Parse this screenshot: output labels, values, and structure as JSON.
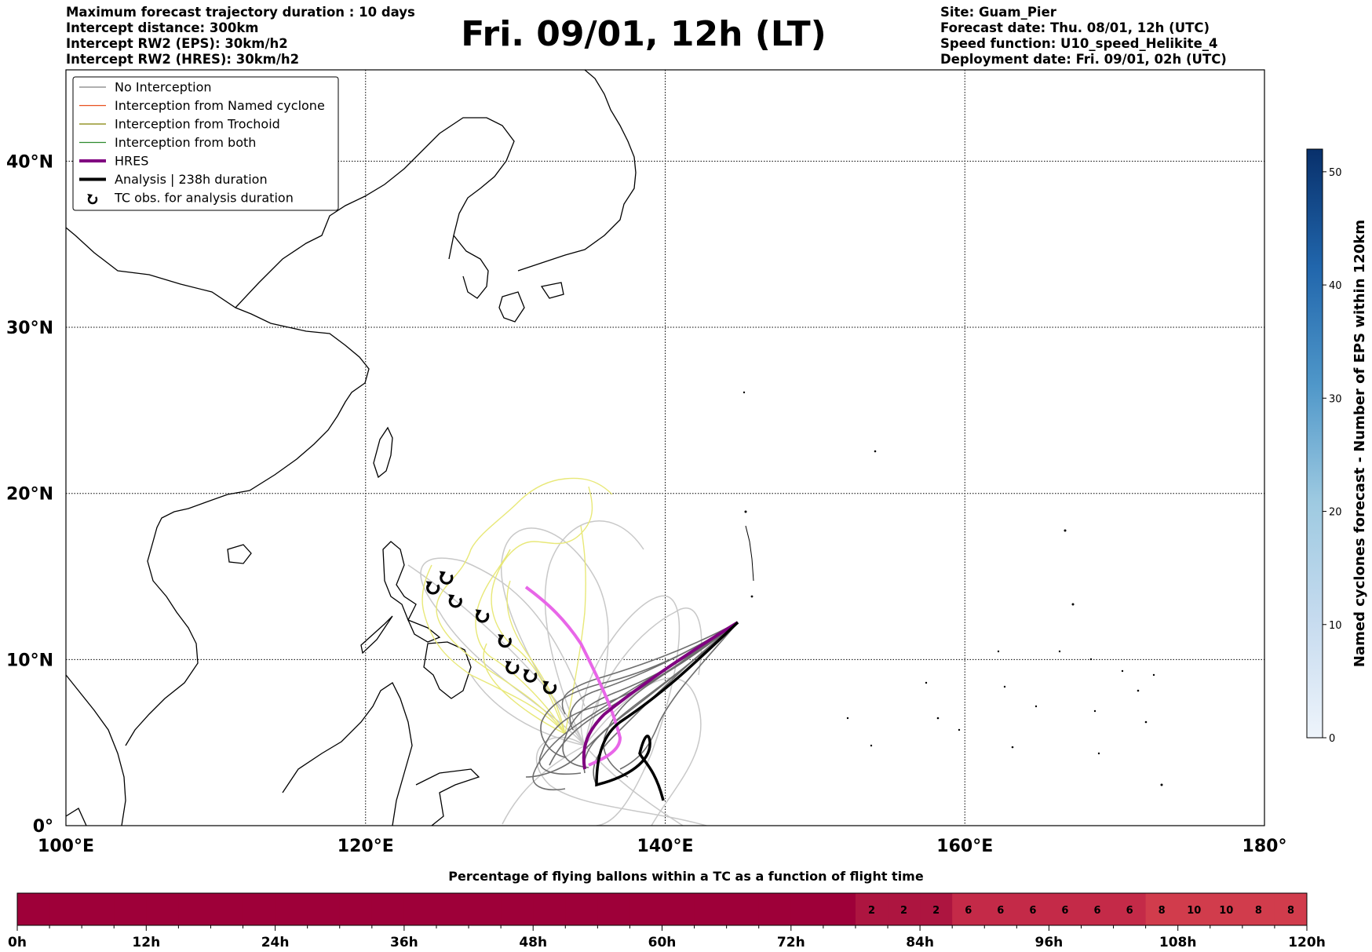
{
  "header": {
    "left_lines": [
      "Maximum forecast trajectory duration : 10 days",
      "Intercept distance: 300km",
      "Intercept RW2 (EPS):  30km/h2",
      "Intercept RW2 (HRES): 30km/h2"
    ],
    "title": "Fri. 09/01, 12h (LT)",
    "right_lines": [
      "Site: Guam_Pier",
      "Forecast date: Thu. 08/01, 12h (UTC)",
      "Speed function: U10_speed_Helikite_4",
      "Deployment date: Fri. 09/01, 02h (UTC)"
    ]
  },
  "map": {
    "lon_range": [
      100,
      180
    ],
    "lat_range": [
      0,
      45.5
    ],
    "lon_ticks": [
      "100°E",
      "120°E",
      "140°E",
      "160°E",
      "180°"
    ],
    "lat_ticks": [
      "0°",
      "10°N",
      "20°N",
      "30°N",
      "40°N"
    ],
    "grid": "dotted"
  },
  "legend": {
    "items": [
      {
        "label": "No Interception",
        "color": "#808080",
        "style": "thin-line"
      },
      {
        "label": "Interception from Named cyclone",
        "color": "#e8501e",
        "style": "thin-line"
      },
      {
        "label": "Interception from Trochoid",
        "color": "#808000",
        "style": "thin-line"
      },
      {
        "label": "Interception from both",
        "color": "#2e8b2e",
        "style": "thin-line"
      },
      {
        "label": "HRES",
        "color": "#800080",
        "style": "thick-line"
      },
      {
        "label": "Analysis | 238h duration",
        "color": "#000000",
        "style": "thick-line"
      },
      {
        "label": "TC obs. for analysis duration",
        "color": "#000000",
        "style": "cyclone-icon"
      }
    ]
  },
  "colorbar": {
    "label": "Named cyclones forecast - Number of EPS within 120km",
    "ticks": [
      "0",
      "10",
      "20",
      "30",
      "40",
      "50"
    ],
    "range": [
      0,
      52
    ],
    "color_low": "#eef4fb",
    "color_high": "#08306b"
  },
  "bottom_bar": {
    "title": "Percentage of flying ballons within a TC as a function of flight time",
    "time_ticks": [
      "0h",
      "12h",
      "24h",
      "36h",
      "48h",
      "60h",
      "72h",
      "84h",
      "96h",
      "108h",
      "120h"
    ],
    "cells": [
      "",
      "",
      "",
      "",
      "",
      "",
      "",
      "",
      "",
      "",
      "",
      "",
      "",
      "",
      "",
      "",
      "",
      "",
      "",
      "",
      "",
      "",
      "",
      "",
      "",
      "",
      "2",
      "2",
      "2",
      "6",
      "6",
      "6",
      "6",
      "6",
      "6",
      "8",
      "10",
      "10",
      "8",
      "8"
    ],
    "color_zero": "#9e0039",
    "color_low": "#ad1540",
    "color_mid": "#c42a48",
    "color_high": "#d13c4c"
  },
  "trajectories": {
    "hres_color": "#800080",
    "hres_light_color": "#e866e8",
    "analysis_color": "#000000",
    "eps_dark_color": "#6e6e6e",
    "eps_light_color": "#c8c8c8",
    "trochoid_color": "#e8e878"
  },
  "tc_obs_points": [
    {
      "lon": 124.5,
      "lat": 14.3
    },
    {
      "lon": 125.4,
      "lat": 14.9
    },
    {
      "lon": 126.0,
      "lat": 13.5
    },
    {
      "lon": 127.8,
      "lat": 12.6
    },
    {
      "lon": 129.3,
      "lat": 11.1
    },
    {
      "lon": 129.8,
      "lat": 9.5
    },
    {
      "lon": 131.0,
      "lat": 9.0
    },
    {
      "lon": 132.3,
      "lat": 8.3
    }
  ]
}
